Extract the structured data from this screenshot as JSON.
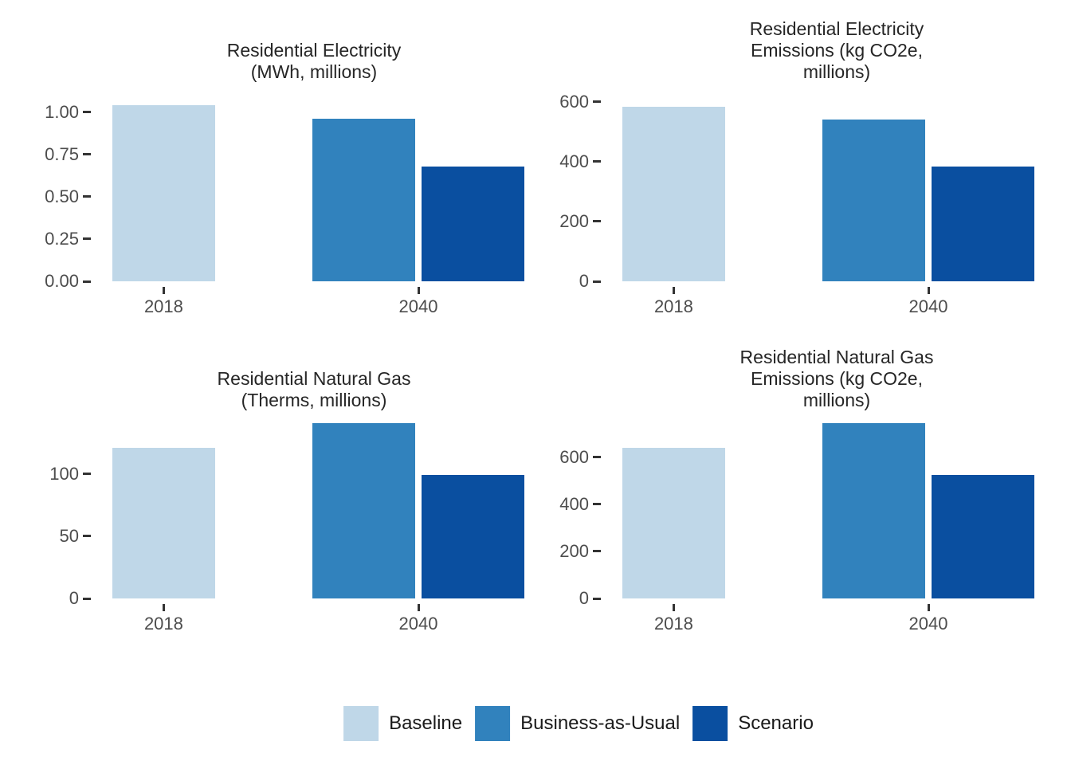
{
  "figure": {
    "background": "#ffffff",
    "legend": {
      "position": "bottom",
      "items": [
        {
          "label": "Baseline",
          "color": "#bfd7e8"
        },
        {
          "label": "Business-as-Usual",
          "color": "#3182bd"
        },
        {
          "label": "Scenario",
          "color": "#0a4fa0"
        }
      ]
    }
  },
  "chart_data": [
    {
      "type": "bar",
      "title": "Residential Electricity\n(MWh, millions)",
      "xlabel": "",
      "ylabel": "",
      "categories": [
        "2018",
        "2040"
      ],
      "series": [
        {
          "name": "Baseline",
          "color": "#bfd7e8",
          "values": [
            1.04,
            null
          ]
        },
        {
          "name": "Business-as-Usual",
          "color": "#3182bd",
          "values": [
            null,
            0.96
          ]
        },
        {
          "name": "Scenario",
          "color": "#0a4fa0",
          "values": [
            null,
            0.68
          ]
        }
      ],
      "ylim": [
        0,
        1.155
      ],
      "yticks": {
        "values": [
          0,
          0.25,
          0.5,
          0.75,
          1.0
        ],
        "labels": [
          "0.00",
          "0.25",
          "0.50",
          "0.75",
          "1.00"
        ]
      },
      "grid": false,
      "legend_position": "none"
    },
    {
      "type": "bar",
      "title": "Residential Electricity\nEmissions (kg CO2e,\nmillions)",
      "xlabel": "",
      "ylabel": "",
      "categories": [
        "2018",
        "2040"
      ],
      "series": [
        {
          "name": "Baseline",
          "color": "#bfd7e8",
          "values": [
            585,
            null
          ]
        },
        {
          "name": "Business-as-Usual",
          "color": "#3182bd",
          "values": [
            null,
            542
          ]
        },
        {
          "name": "Scenario",
          "color": "#0a4fa0",
          "values": [
            null,
            385
          ]
        }
      ],
      "ylim": [
        0,
        653
      ],
      "yticks": {
        "values": [
          0,
          200,
          400,
          600
        ],
        "labels": [
          "0",
          "200",
          "400",
          "600"
        ]
      },
      "grid": false,
      "legend_position": "none"
    },
    {
      "type": "bar",
      "title": "Residential Natural Gas\n(Therms, millions)",
      "xlabel": "",
      "ylabel": "",
      "categories": [
        "2018",
        "2040"
      ],
      "series": [
        {
          "name": "Baseline",
          "color": "#bfd7e8",
          "values": [
            121,
            null
          ]
        },
        {
          "name": "Business-as-Usual",
          "color": "#3182bd",
          "values": [
            null,
            141
          ]
        },
        {
          "name": "Scenario",
          "color": "#0a4fa0",
          "values": [
            null,
            99
          ]
        }
      ],
      "ylim": [
        0,
        148
      ],
      "yticks": {
        "values": [
          0,
          50,
          100
        ],
        "labels": [
          "0",
          "50",
          "100"
        ]
      },
      "grid": false,
      "legend_position": "none"
    },
    {
      "type": "bar",
      "title": "Residential Natural Gas\nEmissions (kg CO2e,\nmillions)",
      "xlabel": "",
      "ylabel": "",
      "categories": [
        "2018",
        "2040"
      ],
      "series": [
        {
          "name": "Baseline",
          "color": "#bfd7e8",
          "values": [
            642,
            null
          ]
        },
        {
          "name": "Business-as-Usual",
          "color": "#3182bd",
          "values": [
            null,
            746
          ]
        },
        {
          "name": "Scenario",
          "color": "#0a4fa0",
          "values": [
            null,
            527
          ]
        }
      ],
      "ylim": [
        0,
        783
      ],
      "yticks": {
        "values": [
          0,
          200,
          400,
          600
        ],
        "labels": [
          "0",
          "200",
          "400",
          "600"
        ]
      },
      "grid": false,
      "legend_position": "none"
    }
  ]
}
